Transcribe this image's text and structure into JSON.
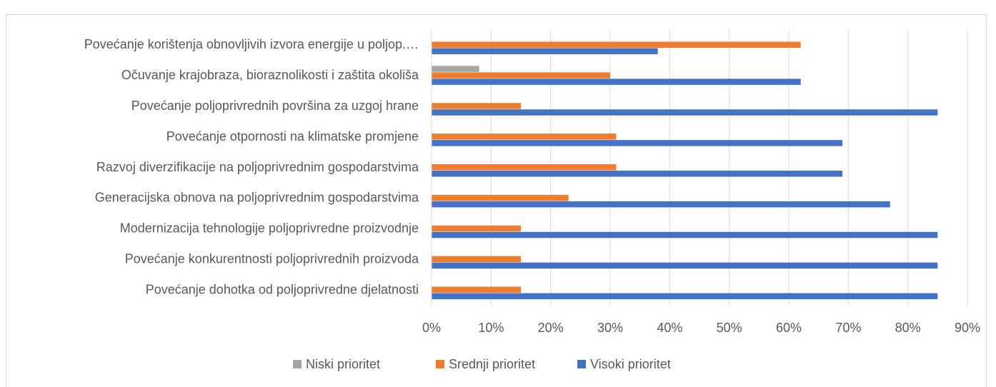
{
  "chart_data": {
    "type": "bar",
    "orientation": "horizontal",
    "categories": [
      "Povećanje korištenja obnovljivih izvora energije u poljop.…",
      "Očuvanje krajobraza, bioraznolikosti i zaštita okoliša",
      "Povećanje poljoprivrednih površina za uzgoj hrane",
      "Povećanje otpornosti na klimatske promjene",
      "Razvoj diverzifikacije na poljoprivrednim gospodarstvima",
      "Generacijska obnova na poljoprivrednim gospodarstvima",
      "Modernizacija tehnologije poljoprivredne proizvodnje",
      "Povećanje konkurentnosti poljoprivrednih proizvoda",
      "Povećanje dohotka od poljoprivredne djelatnosti"
    ],
    "series": [
      {
        "name": "Niski prioritet",
        "color": "#a5a5a5",
        "values": [
          0,
          8,
          0,
          0,
          0,
          0,
          0,
          0,
          0
        ]
      },
      {
        "name": "Srednji prioritet",
        "color": "#ed7d31",
        "values": [
          62,
          30,
          15,
          31,
          31,
          23,
          15,
          15,
          15
        ]
      },
      {
        "name": "Visoki prioritet",
        "color": "#4472c4",
        "values": [
          38,
          62,
          85,
          69,
          69,
          77,
          85,
          85,
          85
        ]
      }
    ],
    "xlim": [
      0,
      90
    ],
    "xticks": [
      {
        "value": 0,
        "label": "0%"
      },
      {
        "value": 10,
        "label": "10%"
      },
      {
        "value": 20,
        "label": "20%"
      },
      {
        "value": 30,
        "label": "30%"
      },
      {
        "value": 40,
        "label": "40%"
      },
      {
        "value": 50,
        "label": "50%"
      },
      {
        "value": 60,
        "label": "60%"
      },
      {
        "value": 70,
        "label": "70%"
      },
      {
        "value": 80,
        "label": "80%"
      },
      {
        "value": 90,
        "label": "90%"
      }
    ],
    "grid": true,
    "legend": "bottom"
  }
}
